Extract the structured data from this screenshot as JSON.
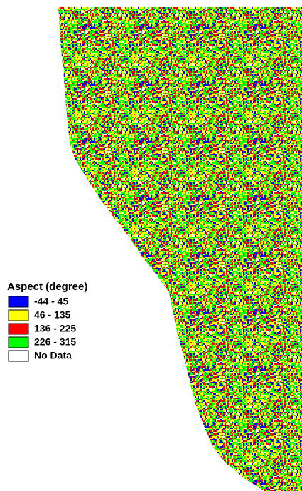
{
  "legend": {
    "title": "Aspect (degree)",
    "items": [
      {
        "label": "-44 - 45",
        "color": "#0000ff"
      },
      {
        "label": "46 - 135",
        "color": "#ffff00"
      },
      {
        "label": "136 - 225",
        "color": "#ff0000"
      },
      {
        "label": "226 - 315",
        "color": "#00ff00"
      },
      {
        "label": "No Data",
        "color": "#ffffff"
      }
    ]
  }
}
